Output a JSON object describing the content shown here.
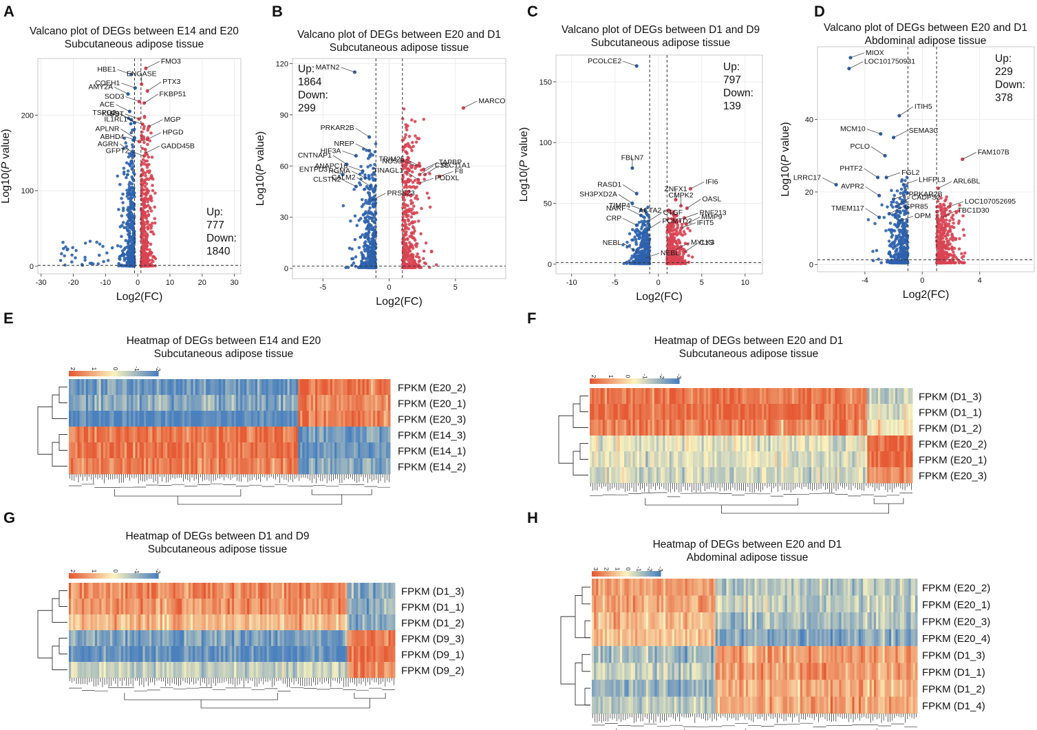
{
  "figure": {
    "colors": {
      "up": "#d94452",
      "down": "#2d62ad",
      "grid": "#ececec",
      "axis": "#555555",
      "dash": "#333333"
    }
  },
  "chart_data": [
    {
      "id": "A",
      "type": "scatter",
      "title": "Valcano plot of DEGs between E14 and E20",
      "subtitle": "Subcutaneous adipose tissue",
      "xlabel": "Log2(FC)",
      "ylabel": "Log10(P value)",
      "xlim": [
        -31,
        32
      ],
      "ylim": [
        -10,
        275
      ],
      "xticks": [
        -30,
        -20,
        -10,
        0,
        10,
        20,
        30
      ],
      "yticks": [
        0,
        100,
        200
      ],
      "fc_threshold": 1,
      "p_threshold": 1.3,
      "stats": {
        "up_label": "Up:",
        "up": "777",
        "down_label": "Down:",
        "down": "1840"
      },
      "stats_pos": "bottom-right",
      "labels": [
        {
          "gene": "HBE1",
          "x": -2,
          "y": 254,
          "side": "left"
        },
        {
          "gene": "FMO3",
          "x": 2.5,
          "y": 262,
          "side": "right"
        },
        {
          "gene": "ENGASE",
          "x": 1.2,
          "y": 241,
          "side": "center"
        },
        {
          "gene": "COEH1",
          "x": -0.8,
          "y": 236,
          "side": "left"
        },
        {
          "gene": "AMY2A",
          "x": -3,
          "y": 228,
          "side": "left"
        },
        {
          "gene": "PTX3",
          "x": 3,
          "y": 232,
          "side": "right"
        },
        {
          "gene": "SOD3",
          "x": 0.5,
          "y": 218,
          "side": "left"
        },
        {
          "gene": "ACE",
          "x": -2.5,
          "y": 205,
          "side": "left"
        },
        {
          "gene": "FKBP51",
          "x": 2,
          "y": 216,
          "side": "right"
        },
        {
          "gene": "UST",
          "x": 0.4,
          "y": 195,
          "side": "left"
        },
        {
          "gene": "TSPO2",
          "x": -2,
          "y": 194,
          "side": "left"
        },
        {
          "gene": "KLF9",
          "x": -1,
          "y": 190,
          "side": "left"
        },
        {
          "gene": "IL1RL1",
          "x": 1.5,
          "y": 188,
          "side": "left"
        },
        {
          "gene": "MGP",
          "x": 3.5,
          "y": 185,
          "side": "right"
        },
        {
          "gene": "APLNR",
          "x": -1,
          "y": 170,
          "side": "left"
        },
        {
          "gene": "ABHD4",
          "x": 0.5,
          "y": 165,
          "side": "left"
        },
        {
          "gene": "HPGD",
          "x": 3,
          "y": 168,
          "side": "right"
        },
        {
          "gene": "AGRN",
          "x": -1.3,
          "y": 150,
          "side": "left"
        },
        {
          "gene": "GFPT2",
          "x": 2,
          "y": 146,
          "side": "left"
        },
        {
          "gene": "GADD45B",
          "x": 2.5,
          "y": 150,
          "side": "right"
        }
      ]
    },
    {
      "id": "B",
      "type": "scatter",
      "title": "Valcano plot of DEGs between E20 and D1",
      "subtitle": "Subcutaneous adipose tissue",
      "xlabel": "Log2(FC)",
      "ylabel": "Log10(P value)",
      "xlim": [
        -7.3,
        8.8
      ],
      "ylim": [
        -6,
        123
      ],
      "xticks": [
        -5,
        0,
        5
      ],
      "yticks": [
        0,
        30,
        60,
        90,
        120
      ],
      "fc_threshold": 1,
      "p_threshold": 1.3,
      "stats": {
        "up_label": "Up:",
        "up": "1864",
        "down_label": "Down:",
        "down": "299"
      },
      "stats_pos": "top-left",
      "labels": [
        {
          "gene": "MATN2",
          "x": -2.6,
          "y": 115,
          "side": "left"
        },
        {
          "gene": "MARCO",
          "x": 5.6,
          "y": 94,
          "side": "right"
        },
        {
          "gene": "PRKAR2B",
          "x": -1.5,
          "y": 77,
          "side": "left"
        },
        {
          "gene": "HIF3A",
          "x": -2.5,
          "y": 66,
          "side": "left"
        },
        {
          "gene": "NREP",
          "x": -1.5,
          "y": 69,
          "side": "left"
        },
        {
          "gene": "C1S",
          "x": 2.3,
          "y": 55,
          "side": "right"
        },
        {
          "gene": "NOS3",
          "x": 2.1,
          "y": 60,
          "side": "left"
        },
        {
          "gene": "TAPBP",
          "x": 2.6,
          "y": 58,
          "side": "right"
        },
        {
          "gene": "CNTNAP1",
          "x": -3.2,
          "y": 61,
          "side": "left"
        },
        {
          "gene": "ANAPC16",
          "x": -2,
          "y": 57,
          "side": "left"
        },
        {
          "gene": "TRIM25",
          "x": 2.3,
          "y": 60,
          "side": "left"
        },
        {
          "gene": "SLC11A1",
          "x": 2.7,
          "y": 55,
          "side": "right"
        },
        {
          "gene": "ENTPD3",
          "x": -3.5,
          "y": 55,
          "side": "left"
        },
        {
          "gene": "RGMA",
          "x": -1.8,
          "y": 53,
          "side": "left"
        },
        {
          "gene": "TINAGL1",
          "x": 2.2,
          "y": 52,
          "side": "left"
        },
        {
          "gene": "F8",
          "x": 3.8,
          "y": 54,
          "side": "right"
        },
        {
          "gene": "CLSTN2",
          "x": -2.5,
          "y": 48,
          "side": "left"
        },
        {
          "gene": "CALM2",
          "x": -1.4,
          "y": 48,
          "side": "left"
        },
        {
          "gene": "PODXL",
          "x": 2.3,
          "y": 50,
          "side": "right"
        },
        {
          "gene": "PRSS23",
          "x": -1.3,
          "y": 40,
          "side": "right"
        }
      ]
    },
    {
      "id": "C",
      "type": "scatter",
      "title": "Valcano plot of DEGs between D1 and D9",
      "subtitle": "Subcutaneous adipose tissue",
      "xlabel": "Log2(FC)",
      "ylabel": "Log10(P value)",
      "xlim": [
        -11.8,
        12
      ],
      "ylim": [
        -8,
        172
      ],
      "xticks": [
        -10,
        -5,
        0,
        5,
        10
      ],
      "yticks": [
        0,
        50,
        100,
        150
      ],
      "fc_threshold": 1,
      "p_threshold": 1.3,
      "stats": {
        "up_label": "Up:",
        "up": "797",
        "down_label": "Down:",
        "down": "139"
      },
      "stats_pos": "top-right",
      "labels": [
        {
          "gene": "PCOLCE2",
          "x": -2.5,
          "y": 163,
          "side": "left"
        },
        {
          "gene": "FBLN7",
          "x": -3,
          "y": 79,
          "side": "center"
        },
        {
          "gene": "RASD1",
          "x": -2.5,
          "y": 58,
          "side": "left"
        },
        {
          "gene": "ZNFX1",
          "x": 2,
          "y": 53,
          "side": "center"
        },
        {
          "gene": "IFI6",
          "x": 3.7,
          "y": 62,
          "side": "right"
        },
        {
          "gene": "SH3PXD2A",
          "x": -3,
          "y": 50,
          "side": "left"
        },
        {
          "gene": "TIMP4",
          "x": -1.5,
          "y": 44,
          "side": "left"
        },
        {
          "gene": "CMPK2",
          "x": 2.6,
          "y": 48,
          "side": "center"
        },
        {
          "gene": "OASL",
          "x": 3.3,
          "y": 46,
          "side": "right"
        },
        {
          "gene": "ACTA2",
          "x": 2.1,
          "y": 40,
          "side": "left"
        },
        {
          "gene": "NARF",
          "x": -2,
          "y": 40,
          "side": "left"
        },
        {
          "gene": "CTGF",
          "x": -1.2,
          "y": 35,
          "side": "right"
        },
        {
          "gene": "RNF213",
          "x": 3,
          "y": 38,
          "side": "right"
        },
        {
          "gene": "CRP",
          "x": -2.5,
          "y": 32,
          "side": "left"
        },
        {
          "gene": "PCMTD2",
          "x": -1.3,
          "y": 28,
          "side": "right"
        },
        {
          "gene": "IFIT5",
          "x": 2.7,
          "y": 30,
          "side": "right"
        },
        {
          "gene": "MMP9",
          "x": 3.2,
          "y": 33,
          "side": "right"
        },
        {
          "gene": "NEBL",
          "x": -2.5,
          "y": 10,
          "side": "left"
        },
        {
          "gene": "NEBL",
          "x": -1.5,
          "y": 5,
          "side": "right"
        },
        {
          "gene": "MYLK3",
          "x": 2,
          "y": 12,
          "side": "right"
        },
        {
          "gene": "C1S",
          "x": 3,
          "y": 10,
          "side": "right"
        }
      ]
    },
    {
      "id": "D",
      "type": "scatter",
      "title": "Valcano plot of DEGs between E20 and D1",
      "subtitle": "Abdominal adipose tissue",
      "xlabel": "Log2(FC)",
      "ylabel": "Log10(P value)",
      "xlim": [
        -7.3,
        7.8
      ],
      "ylim": [
        -2,
        60
      ],
      "xticks": [
        -4,
        0,
        4
      ],
      "yticks": [
        0,
        20,
        40
      ],
      "fc_threshold": 1,
      "p_threshold": 1.3,
      "stats": {
        "up_label": "Up:",
        "up": "229",
        "down_label": "Down:",
        "down": "378"
      },
      "stats_pos": "top-right",
      "labels": [
        {
          "gene": "MIOX",
          "x": -5,
          "y": 57,
          "side": "right"
        },
        {
          "gene": "LOC101750931",
          "x": -5.1,
          "y": 54,
          "side": "right"
        },
        {
          "gene": "ITIH5",
          "x": -1.6,
          "y": 41,
          "side": "right"
        },
        {
          "gene": "MCM10",
          "x": -2.9,
          "y": 36,
          "side": "left"
        },
        {
          "gene": "SEMA3C",
          "x": -2,
          "y": 35,
          "side": "right"
        },
        {
          "gene": "PCLO",
          "x": -2.6,
          "y": 30,
          "side": "left"
        },
        {
          "gene": "LHFPL3",
          "x": -1.3,
          "y": 22,
          "side": "right"
        },
        {
          "gene": "FAM107B",
          "x": 2.8,
          "y": 29,
          "side": "right"
        },
        {
          "gene": "PHTF2",
          "x": -3.1,
          "y": 24,
          "side": "left"
        },
        {
          "gene": "FGL2",
          "x": -2.5,
          "y": 24,
          "side": "right"
        },
        {
          "gene": "ARL6BL",
          "x": 1.1,
          "y": 21,
          "side": "right"
        },
        {
          "gene": "AVPR2",
          "x": -3,
          "y": 19,
          "side": "left"
        },
        {
          "gene": "PRKAR2B",
          "x": -2,
          "y": 18,
          "side": "right"
        },
        {
          "gene": "LRRC17",
          "x": -6,
          "y": 22,
          "side": "left"
        },
        {
          "gene": "CADPS2",
          "x": -1.8,
          "y": 16,
          "side": "right"
        },
        {
          "gene": "LOC107052695",
          "x": 1.9,
          "y": 16,
          "side": "right"
        },
        {
          "gene": "GPR85",
          "x": -2.3,
          "y": 14,
          "side": "right"
        },
        {
          "gene": "TMEM117",
          "x": -3,
          "y": 13,
          "side": "left"
        },
        {
          "gene": "OPM",
          "x": -1.6,
          "y": 12,
          "side": "right"
        },
        {
          "gene": "TBC1D30",
          "x": 1.4,
          "y": 13,
          "side": "right"
        }
      ]
    },
    {
      "id": "E",
      "type": "heatmap",
      "title": "Heatmap of DEGs between E14 and E20",
      "subtitle": "Subcutaneous adipose tissue",
      "legend_ticks": [
        "2",
        "1",
        "0",
        "-1",
        "-2"
      ],
      "rows": [
        "FPKM (E20_2)",
        "FPKM (E20_1)",
        "FPKM (E20_3)",
        "FPKM (E14_3)",
        "FPKM (E14_1)",
        "FPKM (E14_2)"
      ],
      "row_groups": [
        [
          0,
          1,
          2
        ],
        [
          3,
          4,
          5
        ]
      ],
      "col_split": 0.71,
      "block_pattern": [
        [
          -1.3,
          1.3
        ],
        [
          -1.0,
          1.1
        ],
        [
          -1.5,
          1.2
        ],
        [
          1.3,
          -1.2
        ],
        [
          1.4,
          -1.3
        ],
        [
          1.2,
          -1.1
        ]
      ]
    },
    {
      "id": "F",
      "type": "heatmap",
      "title": "Heatmap of DEGs between E20 and D1",
      "subtitle": "Subcutaneous adipose tissue",
      "legend_ticks": [
        "2",
        "1",
        "0",
        "-1",
        "-2",
        "-3"
      ],
      "rows": [
        "FPKM (D1_3)",
        "FPKM (D1_1)",
        "FPKM (D1_2)",
        "FPKM (E20_2)",
        "FPKM (E20_1)",
        "FPKM (E20_3)"
      ],
      "row_groups": [
        [
          0,
          1,
          2
        ],
        [
          3,
          4,
          5
        ]
      ],
      "col_split": 0.86,
      "block_pattern": [
        [
          1.3,
          -0.5
        ],
        [
          1.4,
          -0.2
        ],
        [
          1.2,
          0.1
        ],
        [
          -0.2,
          1.4
        ],
        [
          -0.3,
          1.5
        ],
        [
          -0.4,
          1.0
        ]
      ]
    },
    {
      "id": "G",
      "type": "heatmap",
      "title": "Heatmap of DEGs between D1 and D9",
      "subtitle": "Subcutaneous adipose tissue",
      "legend_ticks": [
        "2",
        "1",
        "0",
        "-1",
        "-2"
      ],
      "rows": [
        "FPKM (D1_3)",
        "FPKM (D1_1)",
        "FPKM (D1_2)",
        "FPKM (D9_3)",
        "FPKM (D9_1)",
        "FPKM (D9_2)"
      ],
      "row_groups": [
        [
          0,
          1,
          2
        ],
        [
          3,
          4,
          5
        ]
      ],
      "col_split": 0.85,
      "block_pattern": [
        [
          1.1,
          -1.1
        ],
        [
          1.0,
          -0.9
        ],
        [
          0.6,
          -1.0
        ],
        [
          -1.1,
          1.3
        ],
        [
          -1.4,
          1.4
        ],
        [
          -0.5,
          1.2
        ]
      ]
    },
    {
      "id": "H",
      "type": "heatmap",
      "title": "Heatmap of DEGs between E20 and D1",
      "subtitle": "Abdominal adipose tissue",
      "legend_ticks": [
        "3",
        "2",
        "1",
        "0",
        "-1",
        "-2",
        "-3"
      ],
      "rows": [
        "FPKM (E20_2)",
        "FPKM (E20_1)",
        "FPKM (E20_3)",
        "FPKM (E20_4)",
        "FPKM (D1_3)",
        "FPKM (D1_1)",
        "FPKM (D1_2)",
        "FPKM (D1_4)"
      ],
      "row_groups": [
        [
          0,
          1,
          2,
          3
        ],
        [
          4,
          5,
          6,
          7
        ]
      ],
      "col_split": 0.38,
      "block_pattern": [
        [
          0.9,
          -0.6
        ],
        [
          0.8,
          -0.5
        ],
        [
          0.6,
          -0.7
        ],
        [
          0.5,
          -1.0
        ],
        [
          -0.8,
          0.9
        ],
        [
          -0.5,
          0.9
        ],
        [
          -0.9,
          0.7
        ],
        [
          -0.6,
          0.8
        ]
      ]
    }
  ]
}
